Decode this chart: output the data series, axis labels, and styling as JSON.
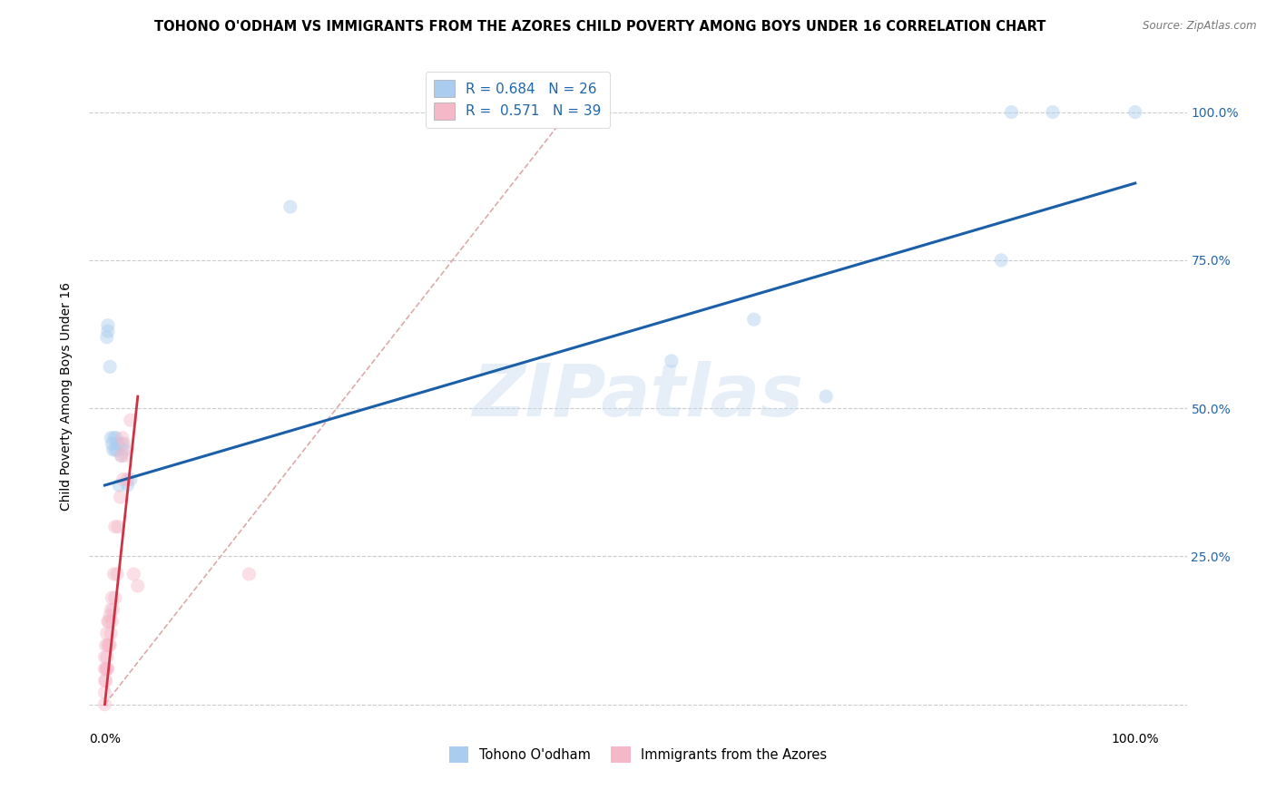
{
  "title": "TOHONO O'ODHAM VS IMMIGRANTS FROM THE AZORES CHILD POVERTY AMONG BOYS UNDER 16 CORRELATION CHART",
  "source": "Source: ZipAtlas.com",
  "ylabel": "Child Poverty Among Boys Under 16",
  "background_color": "#ffffff",
  "watermark": "ZIPatlas",
  "R_blue": 0.684,
  "N_blue": 26,
  "R_pink": 0.571,
  "N_pink": 39,
  "legend_label_blue": "Tohono O'odham",
  "legend_label_pink": "Immigrants from the Azores",
  "blue_color": "#aaccee",
  "pink_color": "#f4b8c8",
  "blue_line_color": "#1a5fa8",
  "pink_line_color": "#cc3344",
  "ref_line_color": "#ddaaaa",
  "grid_color": "#cccccc",
  "blue_scatter_x": [
    0.002,
    0.003,
    0.003,
    0.005,
    0.006,
    0.007,
    0.008,
    0.009,
    0.01,
    0.011,
    0.012,
    0.013,
    0.014,
    0.016,
    0.017,
    0.019,
    0.022,
    0.025,
    0.18,
    0.55,
    0.63,
    0.7,
    0.87,
    0.88,
    0.92,
    1.0
  ],
  "blue_scatter_y": [
    0.62,
    0.63,
    0.64,
    0.57,
    0.45,
    0.44,
    0.43,
    0.45,
    0.43,
    0.45,
    0.43,
    0.44,
    0.37,
    0.42,
    0.44,
    0.43,
    0.37,
    0.38,
    0.84,
    0.58,
    0.65,
    0.52,
    0.75,
    1.0,
    1.0,
    1.0
  ],
  "pink_scatter_x": [
    0.0,
    0.0,
    0.0,
    0.0,
    0.0,
    0.001,
    0.001,
    0.001,
    0.002,
    0.002,
    0.002,
    0.003,
    0.003,
    0.003,
    0.004,
    0.004,
    0.005,
    0.005,
    0.006,
    0.006,
    0.007,
    0.007,
    0.008,
    0.009,
    0.01,
    0.01,
    0.012,
    0.013,
    0.015,
    0.016,
    0.017,
    0.018,
    0.019,
    0.02,
    0.022,
    0.025,
    0.028,
    0.032,
    0.14
  ],
  "pink_scatter_y": [
    0.0,
    0.02,
    0.04,
    0.06,
    0.08,
    0.04,
    0.06,
    0.1,
    0.06,
    0.08,
    0.12,
    0.06,
    0.1,
    0.14,
    0.1,
    0.14,
    0.1,
    0.15,
    0.12,
    0.16,
    0.14,
    0.18,
    0.16,
    0.22,
    0.18,
    0.3,
    0.22,
    0.3,
    0.35,
    0.42,
    0.45,
    0.38,
    0.44,
    0.42,
    0.38,
    0.48,
    0.22,
    0.2,
    0.22
  ],
  "blue_line_x": [
    0.0,
    1.0
  ],
  "blue_line_y": [
    0.37,
    0.88
  ],
  "pink_line_x": [
    0.0,
    0.032
  ],
  "pink_line_y": [
    0.0,
    0.52
  ],
  "ref_line_x": [
    0.0,
    0.45
  ],
  "ref_line_y": [
    0.0,
    1.0
  ],
  "xlim": [
    -0.015,
    1.05
  ],
  "ylim": [
    -0.04,
    1.08
  ],
  "xticks": [
    0.0,
    0.25,
    0.5,
    0.75,
    1.0
  ],
  "xtick_labels": [
    "0.0%",
    "",
    "",
    "",
    "100.0%"
  ],
  "yticks": [
    0.0,
    0.25,
    0.5,
    0.75,
    1.0
  ],
  "ytick_labels_right": [
    "",
    "25.0%",
    "50.0%",
    "75.0%",
    "100.0%"
  ],
  "marker_size": 120,
  "marker_alpha": 0.45,
  "title_fontsize": 10.5,
  "axis_fontsize": 10,
  "tick_fontsize": 10
}
